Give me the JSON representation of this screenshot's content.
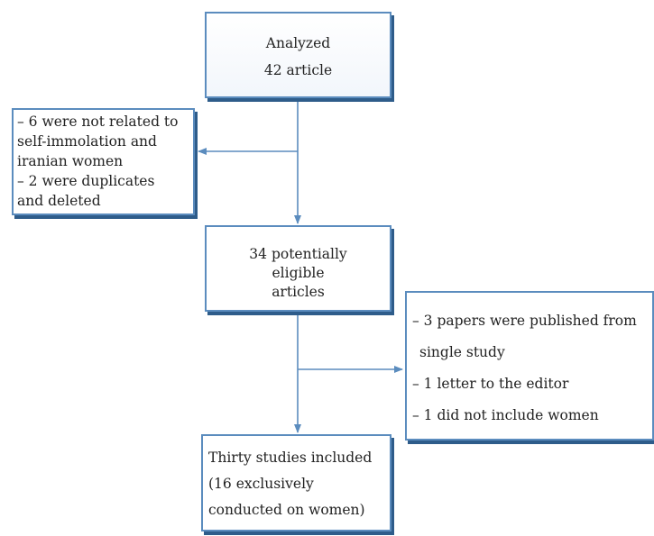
{
  "flowchart": {
    "analyzed": {
      "lines": [
        "Analyzed",
        "42 article"
      ]
    },
    "exclusion_1": {
      "lines": [
        "– 6 were not related to",
        "self-immolation and",
        "iranian women",
        "– 2 were duplicates",
        "and deleted"
      ]
    },
    "eligible": {
      "lines": [
        "34 potentially",
        "eligible",
        "articles"
      ]
    },
    "exclusion_2": {
      "lines": [
        "– 3 papers were published from",
        "single study",
        "– 1 letter to the editor",
        "– 1 did not include women"
      ]
    },
    "included": {
      "lines": [
        "Thirty studies included",
        "(16 exclusively",
        "conducted on women)"
      ]
    }
  },
  "colors": {
    "box_border": "#5b8cbe",
    "box_shadow": "#2e5c8a",
    "arrow": "#5b8cbe",
    "text": "#222222"
  }
}
